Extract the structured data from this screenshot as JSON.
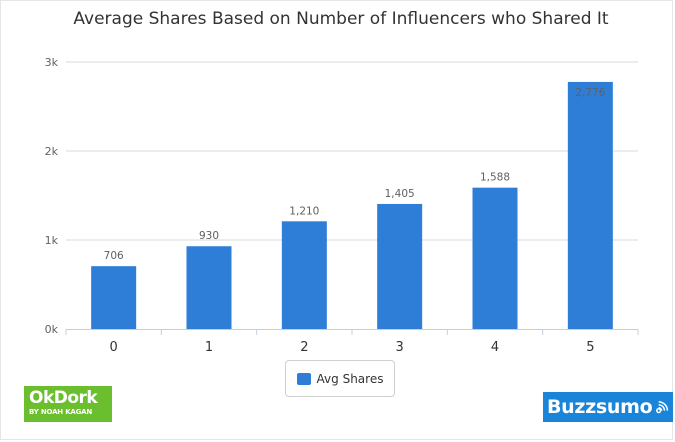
{
  "chart_data": {
    "type": "bar",
    "title": "Average Shares Based on Number of Influencers who Shared It",
    "xlabel": "",
    "ylabel": "",
    "categories": [
      "0",
      "1",
      "2",
      "3",
      "4",
      "5"
    ],
    "series": [
      {
        "name": "Avg Shares",
        "values": [
          706,
          930,
          1210,
          1405,
          1588,
          2776
        ]
      }
    ],
    "data_labels": [
      "706",
      "930",
      "1,210",
      "1,405",
      "1,588",
      "2,776"
    ],
    "ylim": [
      0,
      3000
    ],
    "yticks": [
      0,
      1000,
      2000,
      3000
    ],
    "ytick_labels": [
      "0k",
      "1k",
      "2k",
      "3k"
    ],
    "grid": true,
    "legend": "bottom-center",
    "colors": {
      "bar": "#2e7ed8",
      "grid": "#d8d8d8",
      "axis": "#c0d0e0"
    }
  },
  "logos": {
    "okdork": {
      "main": "OkDork",
      "sub": "BY NOAH KAGAN",
      "color": "#6bbf2f"
    },
    "buzzsumo": {
      "word": "Buzzsumo",
      "icon": "wifi-signal-icon",
      "color": "#1a84d8"
    }
  }
}
